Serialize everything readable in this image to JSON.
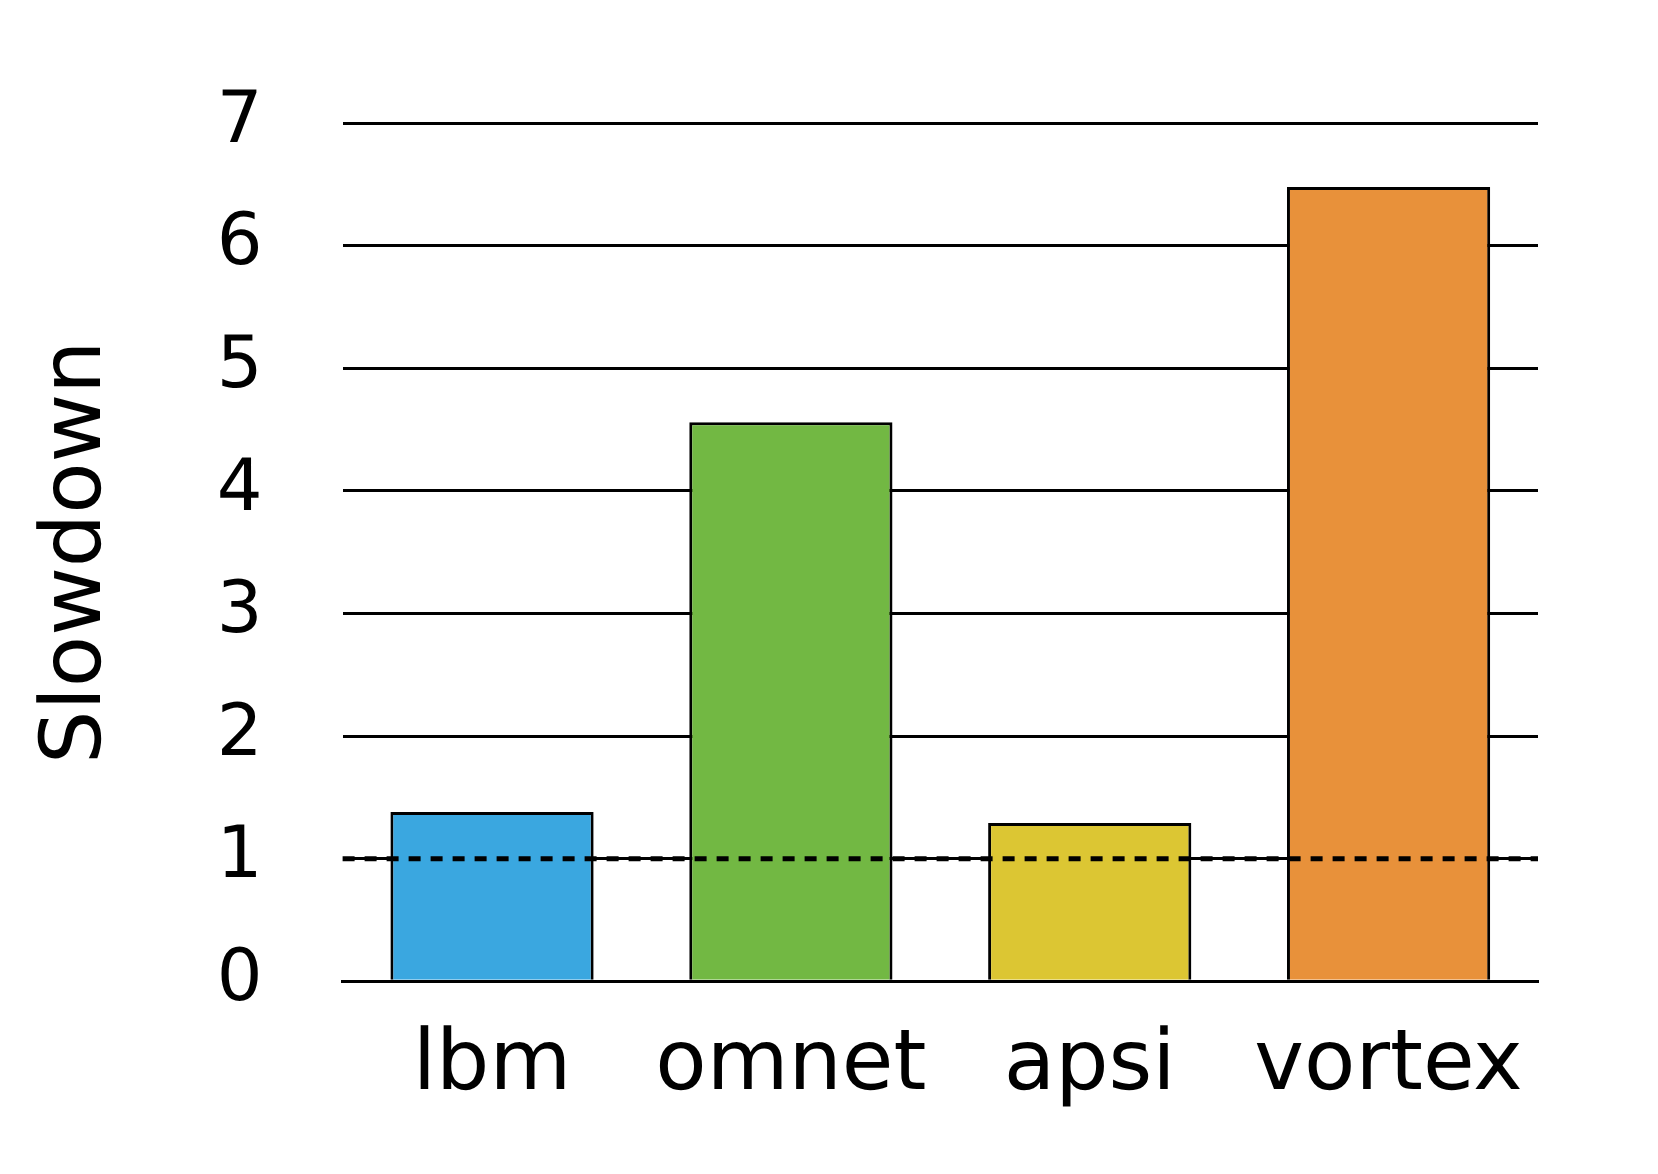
{
  "chart_data": {
    "type": "bar",
    "ylabel": "Slowdown",
    "categories": [
      "lbm",
      "omnet",
      "apsi",
      "vortex"
    ],
    "values": [
      1.38,
      4.56,
      1.29,
      6.48
    ],
    "colors": [
      "#3aa7e0",
      "#72b843",
      "#dcc633",
      "#e8913a"
    ],
    "ylim": [
      0,
      7
    ],
    "yticks": [
      0,
      1,
      2,
      3,
      4,
      5,
      6,
      7
    ],
    "grid": "y",
    "ref_lines": [
      {
        "axis": "y",
        "value": 1,
        "color": "#000000",
        "line_style": "dashed"
      }
    ]
  }
}
